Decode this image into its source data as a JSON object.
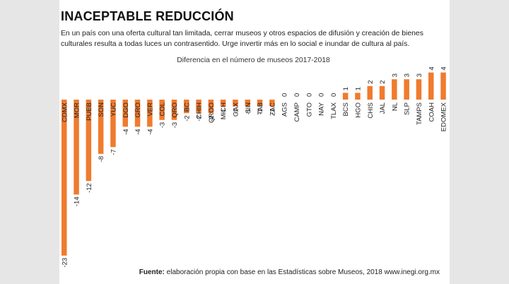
{
  "header": {
    "title": "INACEPTABLE REDUCCIÓN",
    "intro": "En un país con una oferta cultural tan limitada, cerrar museos y otros espacios de difusión y creación de bienes culturales resulta a todas luces un contrasentido. Urge invertir más en lo social e inundar de cultura al país."
  },
  "chart_data": {
    "type": "bar",
    "title": "Diferencia en el número de museos 2017-2018",
    "xlabel": "",
    "ylabel": "",
    "ylim": [
      -23,
      4
    ],
    "grid": false,
    "categories": [
      "CDMX",
      "MOR",
      "PUEB",
      "SON",
      "YUC",
      "DGO",
      "GRO",
      "VER",
      "COL",
      "QRO",
      "BC",
      "CHIH",
      "QROO",
      "MICH",
      "OAX",
      "SIN",
      "TAB",
      "ZAC",
      "AGS",
      "CAMP",
      "GTO",
      "NAY",
      "TLAX",
      "BCS",
      "HGO",
      "CHIS",
      "JAL",
      "NL",
      "SLP",
      "TAMPS",
      "COAH",
      "EDOMEX"
    ],
    "values": [
      -23,
      -14,
      -12,
      -8,
      -7,
      -4,
      -4,
      -4,
      -3,
      -3,
      -2,
      -2,
      -2,
      -1,
      -1,
      -1,
      -1,
      -1,
      0,
      0,
      0,
      0,
      0,
      1,
      1,
      2,
      2,
      3,
      3,
      3,
      4,
      4
    ],
    "value_labels": [
      "-23",
      "-14",
      "-12",
      "-8",
      "-7",
      "-4",
      "-4",
      "-4",
      "-3",
      "-3",
      "-2",
      "-2",
      "-2",
      "-1",
      "-1",
      "-1",
      "-1",
      "-1",
      "0",
      "0",
      "0",
      "0",
      "0",
      "1",
      "1",
      "2",
      "2",
      "3",
      "3",
      "3",
      "4",
      "4"
    ],
    "bar_color": "#f07b2e"
  },
  "footer": {
    "source_label": "Fuente:",
    "source_text": " elaboración propia con base en las Estadísticas sobre Museos, 2018 www.inegi.org.mx"
  }
}
